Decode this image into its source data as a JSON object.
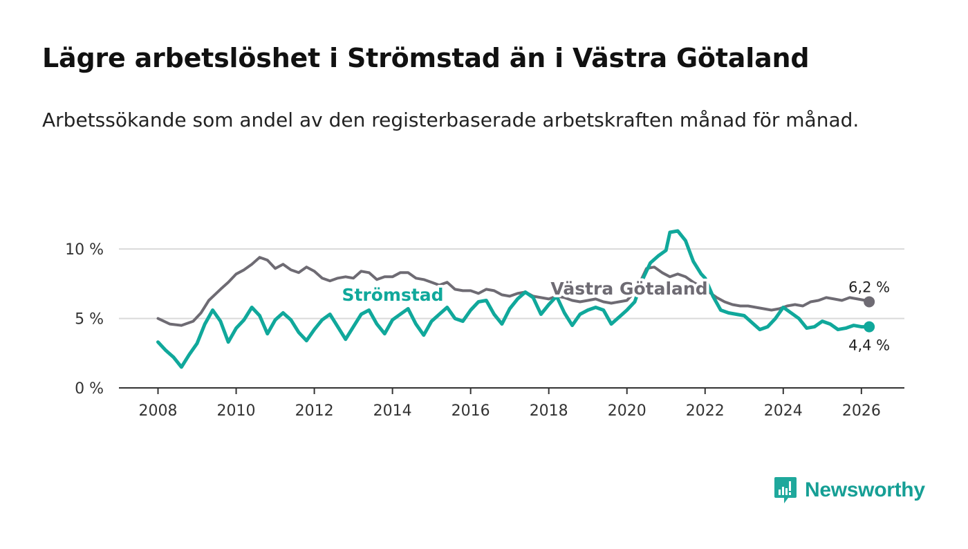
{
  "title": "Lägre arbetslöshet i Strömstad än i Västra Götaland",
  "subtitle": "Arbetssökande som andel av den registerbaserade arbetskraften månad för månad.",
  "brand": {
    "name": "Newsworthy",
    "icon": "newsworthy-logo-icon"
  },
  "colors": {
    "stromstad": "#10a89b",
    "vg": "#6e6b73",
    "grid": "#d9d9d9",
    "axis": "#333333"
  },
  "chart_data": {
    "type": "line",
    "title": "Lägre arbetslöshet i Strömstad än i Västra Götaland",
    "xlabel": "",
    "ylabel": "",
    "xlim": [
      2007.0,
      2027.1
    ],
    "ylim": [
      0,
      11.5
    ],
    "x_ticks": [
      2008,
      2010,
      2012,
      2014,
      2016,
      2018,
      2020,
      2022,
      2024,
      2026
    ],
    "x_tick_labels": [
      "2008",
      "2010",
      "2012",
      "2014",
      "2016",
      "2018",
      "2020",
      "2022",
      "2024",
      "2026"
    ],
    "y_ticks": [
      0,
      5,
      10
    ],
    "y_tick_labels": [
      "0 %",
      "5 %",
      "10 %"
    ],
    "grid": true,
    "series": [
      {
        "name": "Västra Götaland",
        "label": "Västra Götaland",
        "end_label": "6,2 %",
        "points": [
          [
            2008.0,
            5.0
          ],
          [
            2008.3,
            4.6
          ],
          [
            2008.6,
            4.5
          ],
          [
            2008.9,
            4.8
          ],
          [
            2009.1,
            5.4
          ],
          [
            2009.3,
            6.3
          ],
          [
            2009.6,
            7.1
          ],
          [
            2009.8,
            7.6
          ],
          [
            2010.0,
            8.2
          ],
          [
            2010.2,
            8.5
          ],
          [
            2010.4,
            8.9
          ],
          [
            2010.6,
            9.4
          ],
          [
            2010.8,
            9.2
          ],
          [
            2011.0,
            8.6
          ],
          [
            2011.2,
            8.9
          ],
          [
            2011.4,
            8.5
          ],
          [
            2011.6,
            8.3
          ],
          [
            2011.8,
            8.7
          ],
          [
            2012.0,
            8.4
          ],
          [
            2012.2,
            7.9
          ],
          [
            2012.4,
            7.7
          ],
          [
            2012.6,
            7.9
          ],
          [
            2012.8,
            8.0
          ],
          [
            2013.0,
            7.9
          ],
          [
            2013.2,
            8.4
          ],
          [
            2013.4,
            8.3
          ],
          [
            2013.6,
            7.8
          ],
          [
            2013.8,
            8.0
          ],
          [
            2014.0,
            8.0
          ],
          [
            2014.2,
            8.3
          ],
          [
            2014.4,
            8.3
          ],
          [
            2014.6,
            7.9
          ],
          [
            2014.8,
            7.8
          ],
          [
            2015.0,
            7.6
          ],
          [
            2015.2,
            7.4
          ],
          [
            2015.4,
            7.6
          ],
          [
            2015.6,
            7.1
          ],
          [
            2015.8,
            7.0
          ],
          [
            2016.0,
            7.0
          ],
          [
            2016.2,
            6.8
          ],
          [
            2016.4,
            7.1
          ],
          [
            2016.6,
            7.0
          ],
          [
            2016.8,
            6.7
          ],
          [
            2017.0,
            6.6
          ],
          [
            2017.2,
            6.8
          ],
          [
            2017.4,
            6.9
          ],
          [
            2017.6,
            6.6
          ],
          [
            2017.8,
            6.5
          ],
          [
            2018.0,
            6.4
          ],
          [
            2018.2,
            6.6
          ],
          [
            2018.4,
            6.5
          ],
          [
            2018.6,
            6.3
          ],
          [
            2018.8,
            6.2
          ],
          [
            2019.0,
            6.3
          ],
          [
            2019.2,
            6.4
          ],
          [
            2019.4,
            6.2
          ],
          [
            2019.6,
            6.1
          ],
          [
            2019.8,
            6.2
          ],
          [
            2020.0,
            6.3
          ],
          [
            2020.1,
            6.6
          ],
          [
            2020.3,
            7.4
          ],
          [
            2020.5,
            8.6
          ],
          [
            2020.7,
            8.7
          ],
          [
            2020.9,
            8.3
          ],
          [
            2021.1,
            8.0
          ],
          [
            2021.3,
            8.2
          ],
          [
            2021.5,
            8.0
          ],
          [
            2021.7,
            7.6
          ],
          [
            2021.9,
            7.3
          ],
          [
            2022.1,
            6.9
          ],
          [
            2022.3,
            6.5
          ],
          [
            2022.5,
            6.2
          ],
          [
            2022.7,
            6.0
          ],
          [
            2022.9,
            5.9
          ],
          [
            2023.1,
            5.9
          ],
          [
            2023.3,
            5.8
          ],
          [
            2023.5,
            5.7
          ],
          [
            2023.7,
            5.6
          ],
          [
            2023.9,
            5.7
          ],
          [
            2024.1,
            5.9
          ],
          [
            2024.3,
            6.0
          ],
          [
            2024.5,
            5.9
          ],
          [
            2024.7,
            6.2
          ],
          [
            2024.9,
            6.3
          ],
          [
            2025.1,
            6.5
          ],
          [
            2025.3,
            6.4
          ],
          [
            2025.5,
            6.3
          ],
          [
            2025.7,
            6.5
          ],
          [
            2025.9,
            6.4
          ],
          [
            2026.1,
            6.3
          ],
          [
            2026.2,
            6.2
          ]
        ]
      },
      {
        "name": "Strömstad",
        "label": "Strömstad",
        "end_label": "4,4 %",
        "points": [
          [
            2008.0,
            3.3
          ],
          [
            2008.2,
            2.7
          ],
          [
            2008.4,
            2.2
          ],
          [
            2008.6,
            1.5
          ],
          [
            2008.8,
            2.4
          ],
          [
            2009.0,
            3.2
          ],
          [
            2009.2,
            4.6
          ],
          [
            2009.4,
            5.6
          ],
          [
            2009.6,
            4.8
          ],
          [
            2009.8,
            3.3
          ],
          [
            2010.0,
            4.3
          ],
          [
            2010.2,
            4.9
          ],
          [
            2010.4,
            5.8
          ],
          [
            2010.6,
            5.2
          ],
          [
            2010.8,
            3.9
          ],
          [
            2011.0,
            4.9
          ],
          [
            2011.2,
            5.4
          ],
          [
            2011.4,
            4.9
          ],
          [
            2011.6,
            4.0
          ],
          [
            2011.8,
            3.4
          ],
          [
            2012.0,
            4.2
          ],
          [
            2012.2,
            4.9
          ],
          [
            2012.4,
            5.3
          ],
          [
            2012.6,
            4.4
          ],
          [
            2012.8,
            3.5
          ],
          [
            2013.0,
            4.4
          ],
          [
            2013.2,
            5.3
          ],
          [
            2013.4,
            5.6
          ],
          [
            2013.6,
            4.6
          ],
          [
            2013.8,
            3.9
          ],
          [
            2014.0,
            4.9
          ],
          [
            2014.2,
            5.3
          ],
          [
            2014.4,
            5.7
          ],
          [
            2014.6,
            4.6
          ],
          [
            2014.8,
            3.8
          ],
          [
            2015.0,
            4.8
          ],
          [
            2015.2,
            5.3
          ],
          [
            2015.4,
            5.8
          ],
          [
            2015.6,
            5.0
          ],
          [
            2015.8,
            4.8
          ],
          [
            2016.0,
            5.6
          ],
          [
            2016.2,
            6.2
          ],
          [
            2016.4,
            6.3
          ],
          [
            2016.6,
            5.3
          ],
          [
            2016.8,
            4.6
          ],
          [
            2017.0,
            5.7
          ],
          [
            2017.2,
            6.4
          ],
          [
            2017.4,
            6.9
          ],
          [
            2017.6,
            6.5
          ],
          [
            2017.8,
            5.3
          ],
          [
            2018.0,
            6.0
          ],
          [
            2018.2,
            6.6
          ],
          [
            2018.4,
            5.4
          ],
          [
            2018.6,
            4.5
          ],
          [
            2018.8,
            5.3
          ],
          [
            2019.0,
            5.6
          ],
          [
            2019.2,
            5.8
          ],
          [
            2019.4,
            5.6
          ],
          [
            2019.6,
            4.6
          ],
          [
            2019.8,
            5.1
          ],
          [
            2020.0,
            5.6
          ],
          [
            2020.2,
            6.2
          ],
          [
            2020.4,
            7.8
          ],
          [
            2020.6,
            9.0
          ],
          [
            2020.8,
            9.5
          ],
          [
            2021.0,
            9.9
          ],
          [
            2021.1,
            11.2
          ],
          [
            2021.3,
            11.3
          ],
          [
            2021.5,
            10.6
          ],
          [
            2021.7,
            9.1
          ],
          [
            2021.9,
            8.2
          ],
          [
            2022.0,
            7.9
          ],
          [
            2022.2,
            6.6
          ],
          [
            2022.4,
            5.6
          ],
          [
            2022.6,
            5.4
          ],
          [
            2022.8,
            5.3
          ],
          [
            2023.0,
            5.2
          ],
          [
            2023.2,
            4.7
          ],
          [
            2023.4,
            4.2
          ],
          [
            2023.6,
            4.4
          ],
          [
            2023.8,
            5.0
          ],
          [
            2024.0,
            5.8
          ],
          [
            2024.2,
            5.4
          ],
          [
            2024.4,
            5.0
          ],
          [
            2024.6,
            4.3
          ],
          [
            2024.8,
            4.4
          ],
          [
            2025.0,
            4.8
          ],
          [
            2025.2,
            4.6
          ],
          [
            2025.4,
            4.2
          ],
          [
            2025.6,
            4.3
          ],
          [
            2025.8,
            4.5
          ],
          [
            2026.0,
            4.4
          ],
          [
            2026.2,
            4.4
          ]
        ]
      }
    ]
  }
}
